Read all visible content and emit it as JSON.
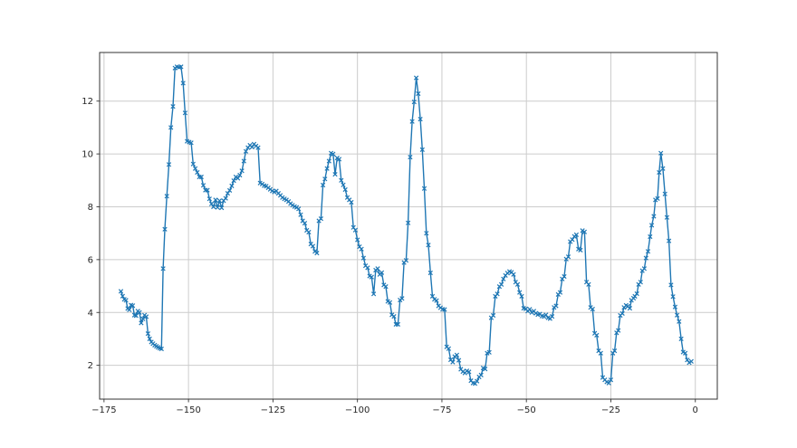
{
  "window": {
    "title": "",
    "background_color": "#ffffff"
  },
  "chart_data": {
    "type": "line",
    "title": "",
    "xlabel": "",
    "ylabel": "",
    "legend": null,
    "grid": true,
    "grid_color": "#cccccc",
    "spine_color": "#333333",
    "tick_label_color": "#262626",
    "line_color": "#1f77b4",
    "marker": "x",
    "marker_color": "#1f77b4",
    "xlim": [
      -176.3,
      6.5
    ],
    "ylim": [
      0.72,
      13.84
    ],
    "xticks": [
      -175,
      -150,
      -125,
      -100,
      -75,
      -50,
      -25,
      0
    ],
    "xtick_labels": [
      "−175",
      "−150",
      "−125",
      "−100",
      "−75",
      "−50",
      "−25",
      "0"
    ],
    "yticks": [
      2,
      4,
      6,
      8,
      10,
      12
    ],
    "ytick_labels": [
      "2",
      "4",
      "6",
      "8",
      "10",
      "12"
    ],
    "points": [
      [
        -170,
        4.8
      ],
      [
        -169.5,
        4.62
      ],
      [
        -169,
        4.5
      ],
      [
        -168.5,
        4.46
      ],
      [
        -168,
        4.15
      ],
      [
        -167.5,
        4.1
      ],
      [
        -167,
        4.28
      ],
      [
        -166.5,
        4.26
      ],
      [
        -166,
        3.9
      ],
      [
        -165.5,
        3.88
      ],
      [
        -165,
        4.05
      ],
      [
        -164.5,
        4.0
      ],
      [
        -164,
        3.6
      ],
      [
        -163.5,
        3.76
      ],
      [
        -163,
        3.9
      ],
      [
        -162.5,
        3.84
      ],
      [
        -162,
        3.2
      ],
      [
        -161.5,
        3.0
      ],
      [
        -161,
        2.88
      ],
      [
        -160.5,
        2.82
      ],
      [
        -160,
        2.76
      ],
      [
        -159.5,
        2.72
      ],
      [
        -159,
        2.68
      ],
      [
        -158.5,
        2.65
      ],
      [
        -158,
        2.62
      ],
      [
        -157.5,
        5.66
      ],
      [
        -157,
        7.15
      ],
      [
        -156.4,
        8.4
      ],
      [
        -155.8,
        9.6
      ],
      [
        -155.2,
        11.0
      ],
      [
        -154.6,
        11.8
      ],
      [
        -154,
        13.25
      ],
      [
        -153.4,
        13.3
      ],
      [
        -152.8,
        13.28
      ],
      [
        -152.2,
        13.3
      ],
      [
        -151.6,
        12.68
      ],
      [
        -151,
        11.55
      ],
      [
        -150.4,
        10.48
      ],
      [
        -149.8,
        10.45
      ],
      [
        -149.2,
        10.42
      ],
      [
        -148.6,
        9.62
      ],
      [
        -148,
        9.45
      ],
      [
        -147.4,
        9.3
      ],
      [
        -146.8,
        9.13
      ],
      [
        -146.2,
        9.13
      ],
      [
        -145.6,
        8.81
      ],
      [
        -145,
        8.63
      ],
      [
        -144.4,
        8.63
      ],
      [
        -143.8,
        8.3
      ],
      [
        -143.2,
        8.11
      ],
      [
        -142.6,
        8.0
      ],
      [
        -142,
        8.26
      ],
      [
        -141.4,
        7.98
      ],
      [
        -140.8,
        8.23
      ],
      [
        -140.2,
        7.96
      ],
      [
        -139.6,
        8.23
      ],
      [
        -139,
        8.32
      ],
      [
        -138.4,
        8.51
      ],
      [
        -137.8,
        8.62
      ],
      [
        -137.2,
        8.79
      ],
      [
        -136.6,
        8.99
      ],
      [
        -136,
        9.13
      ],
      [
        -135.4,
        9.08
      ],
      [
        -134.8,
        9.2
      ],
      [
        -134.2,
        9.36
      ],
      [
        -133.6,
        9.73
      ],
      [
        -133,
        10.1
      ],
      [
        -132.4,
        10.24
      ],
      [
        -131.8,
        10.33
      ],
      [
        -131.2,
        10.26
      ],
      [
        -130.6,
        10.37
      ],
      [
        -130,
        10.3
      ],
      [
        -129.4,
        10.24
      ],
      [
        -128.8,
        8.9
      ],
      [
        -128.2,
        8.86
      ],
      [
        -127.6,
        8.8
      ],
      [
        -127,
        8.78
      ],
      [
        -126.4,
        8.72
      ],
      [
        -125.8,
        8.66
      ],
      [
        -125.2,
        8.6
      ],
      [
        -124.6,
        8.56
      ],
      [
        -124,
        8.6
      ],
      [
        -123.4,
        8.51
      ],
      [
        -122.8,
        8.43
      ],
      [
        -122.2,
        8.35
      ],
      [
        -121.6,
        8.3
      ],
      [
        -121,
        8.26
      ],
      [
        -120.4,
        8.2
      ],
      [
        -119.8,
        8.12
      ],
      [
        -119.2,
        8.06
      ],
      [
        -118.6,
        8.01
      ],
      [
        -118,
        7.98
      ],
      [
        -117.4,
        7.92
      ],
      [
        -116.8,
        7.7
      ],
      [
        -116.2,
        7.47
      ],
      [
        -115.6,
        7.38
      ],
      [
        -115,
        7.11
      ],
      [
        -114.4,
        7.04
      ],
      [
        -113.8,
        6.59
      ],
      [
        -113.2,
        6.51
      ],
      [
        -112.6,
        6.31
      ],
      [
        -112,
        6.25
      ],
      [
        -111.4,
        7.47
      ],
      [
        -110.8,
        7.55
      ],
      [
        -110.2,
        8.82
      ],
      [
        -109.6,
        9.05
      ],
      [
        -109,
        9.45
      ],
      [
        -108.4,
        9.73
      ],
      [
        -107.8,
        10.03
      ],
      [
        -107.2,
        10.0
      ],
      [
        -106.6,
        9.23
      ],
      [
        -106,
        9.85
      ],
      [
        -105.4,
        9.8
      ],
      [
        -104.8,
        9.0
      ],
      [
        -104.2,
        8.83
      ],
      [
        -103.6,
        8.65
      ],
      [
        -103,
        8.35
      ],
      [
        -102.4,
        8.26
      ],
      [
        -101.8,
        8.17
      ],
      [
        -101.2,
        7.22
      ],
      [
        -100.6,
        7.12
      ],
      [
        -100,
        6.75
      ],
      [
        -99.4,
        6.49
      ],
      [
        -98.8,
        6.4
      ],
      [
        -98.2,
        6.06
      ],
      [
        -97.6,
        5.77
      ],
      [
        -97,
        5.69
      ],
      [
        -96.4,
        5.38
      ],
      [
        -95.8,
        5.34
      ],
      [
        -95.2,
        4.7
      ],
      [
        -94.6,
        5.6
      ],
      [
        -94,
        5.66
      ],
      [
        -93.4,
        5.44
      ],
      [
        -92.8,
        5.51
      ],
      [
        -92.2,
        5.04
      ],
      [
        -91.6,
        4.98
      ],
      [
        -91,
        4.42
      ],
      [
        -90.4,
        4.38
      ],
      [
        -89.8,
        3.91
      ],
      [
        -89.2,
        3.85
      ],
      [
        -88.6,
        3.55
      ],
      [
        -88,
        3.55
      ],
      [
        -87.4,
        4.47
      ],
      [
        -86.8,
        4.53
      ],
      [
        -86.2,
        5.89
      ],
      [
        -85.6,
        5.97
      ],
      [
        -85,
        7.39
      ],
      [
        -84.4,
        9.88
      ],
      [
        -83.8,
        11.23
      ],
      [
        -83.2,
        11.97
      ],
      [
        -82.6,
        12.88
      ],
      [
        -82,
        12.28
      ],
      [
        -81.4,
        11.32
      ],
      [
        -80.8,
        10.16
      ],
      [
        -80.2,
        8.69
      ],
      [
        -79.6,
        7.0
      ],
      [
        -79,
        6.55
      ],
      [
        -78.4,
        5.5
      ],
      [
        -77.8,
        4.61
      ],
      [
        -77.2,
        4.5
      ],
      [
        -76.6,
        4.45
      ],
      [
        -76,
        4.25
      ],
      [
        -75.4,
        4.18
      ],
      [
        -74.8,
        4.12
      ],
      [
        -74.2,
        4.11
      ],
      [
        -73.6,
        2.7
      ],
      [
        -73,
        2.63
      ],
      [
        -72.4,
        2.21
      ],
      [
        -71.8,
        2.12
      ],
      [
        -71.2,
        2.33
      ],
      [
        -70.6,
        2.39
      ],
      [
        -70,
        2.19
      ],
      [
        -69.4,
        1.85
      ],
      [
        -68.8,
        1.76
      ],
      [
        -68.2,
        1.71
      ],
      [
        -67.6,
        1.79
      ],
      [
        -67,
        1.75
      ],
      [
        -66.4,
        1.42
      ],
      [
        -65.8,
        1.33
      ],
      [
        -65.2,
        1.31
      ],
      [
        -64.6,
        1.4
      ],
      [
        -64,
        1.56
      ],
      [
        -63.4,
        1.63
      ],
      [
        -62.8,
        1.9
      ],
      [
        -62.2,
        1.86
      ],
      [
        -61.6,
        2.46
      ],
      [
        -61,
        2.49
      ],
      [
        -60.4,
        3.8
      ],
      [
        -59.8,
        3.89
      ],
      [
        -59.2,
        4.61
      ],
      [
        -58.6,
        4.7
      ],
      [
        -58,
        4.98
      ],
      [
        -57.4,
        5.06
      ],
      [
        -56.8,
        5.27
      ],
      [
        -56.2,
        5.4
      ],
      [
        -55.6,
        5.49
      ],
      [
        -55,
        5.55
      ],
      [
        -54.4,
        5.52
      ],
      [
        -53.8,
        5.44
      ],
      [
        -53.2,
        5.15
      ],
      [
        -52.6,
        5.06
      ],
      [
        -52,
        4.76
      ],
      [
        -51.4,
        4.61
      ],
      [
        -50.8,
        4.16
      ],
      [
        -50.2,
        4.14
      ],
      [
        -49.6,
        4.05
      ],
      [
        -49,
        4.12
      ],
      [
        -48.4,
        4.0
      ],
      [
        -47.8,
        4.05
      ],
      [
        -47.2,
        3.97
      ],
      [
        -46.6,
        3.92
      ],
      [
        -46,
        3.94
      ],
      [
        -45.4,
        3.86
      ],
      [
        -44.8,
        3.85
      ],
      [
        -44.2,
        3.91
      ],
      [
        -43.6,
        3.8
      ],
      [
        -43,
        3.77
      ],
      [
        -42.4,
        3.85
      ],
      [
        -41.8,
        4.19
      ],
      [
        -41.2,
        4.25
      ],
      [
        -40.6,
        4.68
      ],
      [
        -40,
        4.76
      ],
      [
        -39.4,
        5.27
      ],
      [
        -38.8,
        5.36
      ],
      [
        -38.2,
        6.02
      ],
      [
        -37.6,
        6.11
      ],
      [
        -37,
        6.68
      ],
      [
        -36.4,
        6.76
      ],
      [
        -35.8,
        6.88
      ],
      [
        -35.2,
        6.94
      ],
      [
        -34.6,
        6.4
      ],
      [
        -34,
        6.36
      ],
      [
        -33.4,
        7.1
      ],
      [
        -32.8,
        7.05
      ],
      [
        -32.2,
        5.15
      ],
      [
        -31.6,
        5.06
      ],
      [
        -31,
        4.19
      ],
      [
        -30.4,
        4.13
      ],
      [
        -29.8,
        3.21
      ],
      [
        -29.2,
        3.14
      ],
      [
        -28.6,
        2.55
      ],
      [
        -28,
        2.46
      ],
      [
        -27.4,
        1.54
      ],
      [
        -26.8,
        1.45
      ],
      [
        -26.2,
        1.37
      ],
      [
        -25.6,
        1.33
      ],
      [
        -25,
        1.45
      ],
      [
        -24.4,
        2.46
      ],
      [
        -23.9,
        2.55
      ],
      [
        -23.3,
        3.23
      ],
      [
        -22.8,
        3.32
      ],
      [
        -22.2,
        3.89
      ],
      [
        -21.6,
        3.96
      ],
      [
        -21.1,
        4.19
      ],
      [
        -20.5,
        4.27
      ],
      [
        -20,
        4.23
      ],
      [
        -19.4,
        4.16
      ],
      [
        -18.9,
        4.46
      ],
      [
        -18.3,
        4.54
      ],
      [
        -17.9,
        4.61
      ],
      [
        -17.3,
        4.71
      ],
      [
        -16.8,
        5.06
      ],
      [
        -16.2,
        5.15
      ],
      [
        -15.7,
        5.58
      ],
      [
        -15.1,
        5.66
      ],
      [
        -14.6,
        6.06
      ],
      [
        -14,
        6.31
      ],
      [
        -13.4,
        6.87
      ],
      [
        -12.9,
        7.3
      ],
      [
        -12.3,
        7.64
      ],
      [
        -11.8,
        8.26
      ],
      [
        -11.2,
        8.31
      ],
      [
        -10.7,
        9.3
      ],
      [
        -10.2,
        10.03
      ],
      [
        -9.6,
        9.45
      ],
      [
        -9,
        8.49
      ],
      [
        -8.4,
        7.6
      ],
      [
        -7.8,
        6.71
      ],
      [
        -7.2,
        5.04
      ],
      [
        -6.6,
        4.6
      ],
      [
        -6,
        4.21
      ],
      [
        -5.4,
        3.9
      ],
      [
        -4.8,
        3.66
      ],
      [
        -4.2,
        3.0
      ],
      [
        -3.6,
        2.5
      ],
      [
        -3,
        2.46
      ],
      [
        -2.4,
        2.2
      ],
      [
        -1.8,
        2.1
      ],
      [
        -1.2,
        2.15
      ]
    ]
  }
}
